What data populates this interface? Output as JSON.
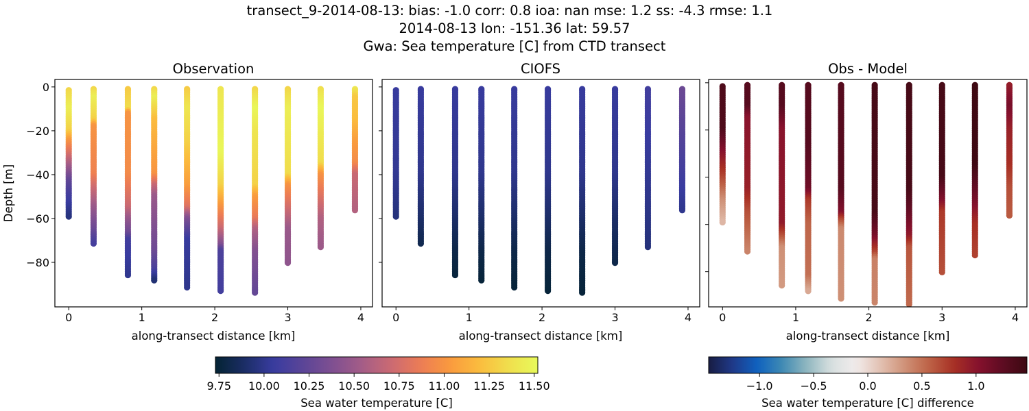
{
  "chart_data": {
    "title_lines": [
      "transect_9-2014-08-13: bias: -1.0  corr: 0.8  ioa: nan  mse: 1.2  ss: -4.3  rmse: 1.1",
      "2014-08-13 lon: -151.36 lat: 59.57",
      "Gwa: Sea temperature [C] from CTD transect"
    ],
    "panels": [
      {
        "title": "Observation",
        "type": "scatter",
        "field": "obs",
        "xlabel": "along-transect distance [km]",
        "ylabel": "Depth [m]",
        "xlim": [
          -0.19,
          4.16
        ],
        "ylim": [
          -100.3,
          3.4
        ],
        "xticks": [
          0,
          1,
          2,
          3,
          4
        ],
        "yticks": [
          0,
          -20,
          -40,
          -60,
          -80
        ],
        "show_ytick_labels": true,
        "colormap": "thermal",
        "clim": [
          9.73,
          11.52
        ]
      },
      {
        "title": "CIOFS",
        "type": "scatter",
        "field": "model",
        "xlabel": "along-transect distance [km]",
        "ylabel": "",
        "xlim": [
          -0.19,
          4.16
        ],
        "ylim": [
          -100.3,
          3.4
        ],
        "xticks": [
          0,
          1,
          2,
          3,
          4
        ],
        "yticks": [
          0,
          -20,
          -40,
          -60,
          -80
        ],
        "show_ytick_labels": false,
        "colormap": "thermal",
        "clim": [
          9.73,
          11.52
        ]
      },
      {
        "title": "Obs - Model",
        "type": "scatter",
        "field": "diff",
        "xlabel": "along-transect distance [km]",
        "ylabel": "",
        "xlim": [
          -0.19,
          4.16
        ],
        "ylim": [
          -94.9,
          1.4
        ],
        "xticks": [
          0,
          1,
          2,
          3,
          4
        ],
        "yticks": [
          0,
          -20,
          -40,
          -60,
          -80
        ],
        "show_ytick_labels": false,
        "colormap": "balance",
        "clim": [
          -1.47,
          1.47
        ]
      }
    ],
    "casts": [
      {
        "x": 0.0,
        "top": -1.5,
        "bottom": -59.5,
        "obs": [
          [
            0,
            11.3
          ],
          [
            10,
            11.45
          ],
          [
            20,
            11.3
          ],
          [
            25,
            11.0
          ],
          [
            30,
            10.8
          ],
          [
            37,
            10.5
          ],
          [
            43,
            10.25
          ],
          [
            50,
            10.1
          ],
          [
            60,
            9.95
          ]
        ],
        "model": [
          [
            0,
            10.05
          ],
          [
            40,
            10.02
          ],
          [
            60,
            9.95
          ]
        ],
        "diff": [
          [
            0,
            1.35
          ],
          [
            20,
            1.35
          ],
          [
            30,
            1.0
          ],
          [
            40,
            0.7
          ],
          [
            50,
            0.35
          ],
          [
            60,
            0.15
          ]
        ]
      },
      {
        "x": 0.34,
        "top": -1.0,
        "bottom": -71.5,
        "obs": [
          [
            0,
            11.3
          ],
          [
            5,
            11.45
          ],
          [
            15,
            11.3
          ],
          [
            18,
            11.0
          ],
          [
            40,
            10.9
          ],
          [
            45,
            10.75
          ],
          [
            55,
            10.5
          ],
          [
            65,
            10.3
          ],
          [
            72,
            10.1
          ]
        ],
        "model": [
          [
            0,
            10.05
          ],
          [
            40,
            10.0
          ],
          [
            60,
            9.9
          ],
          [
            72,
            9.82
          ]
        ],
        "diff": [
          [
            0,
            1.3
          ],
          [
            10,
            1.3
          ],
          [
            15,
            1.0
          ],
          [
            45,
            0.9
          ],
          [
            55,
            0.65
          ],
          [
            72,
            0.4
          ]
        ]
      },
      {
        "x": 0.81,
        "top": -1.0,
        "bottom": -86.5,
        "obs": [
          [
            0,
            11.25
          ],
          [
            10,
            11.35
          ],
          [
            12,
            11.0
          ],
          [
            40,
            10.95
          ],
          [
            55,
            10.7
          ],
          [
            60,
            10.5
          ],
          [
            67,
            10.3
          ],
          [
            70,
            10.1
          ],
          [
            87,
            10.0
          ]
        ],
        "model": [
          [
            0,
            10.05
          ],
          [
            40,
            10.0
          ],
          [
            60,
            9.9
          ],
          [
            75,
            9.8
          ],
          [
            87,
            9.76
          ]
        ],
        "diff": [
          [
            0,
            1.3
          ],
          [
            10,
            1.3
          ],
          [
            20,
            1.0
          ],
          [
            60,
            0.95
          ],
          [
            65,
            0.65
          ],
          [
            70,
            0.35
          ],
          [
            87,
            0.3
          ]
        ]
      },
      {
        "x": 1.17,
        "top": -1.0,
        "bottom": -88.5,
        "obs": [
          [
            0,
            11.3
          ],
          [
            5,
            11.45
          ],
          [
            15,
            11.2
          ],
          [
            40,
            11.0
          ],
          [
            45,
            10.7
          ],
          [
            50,
            10.5
          ],
          [
            75,
            10.3
          ],
          [
            83,
            10.15
          ],
          [
            89,
            9.9
          ]
        ],
        "model": [
          [
            0,
            10.05
          ],
          [
            40,
            10.0
          ],
          [
            60,
            9.9
          ],
          [
            75,
            9.8
          ],
          [
            89,
            9.75
          ]
        ],
        "diff": [
          [
            0,
            1.3
          ],
          [
            25,
            1.3
          ],
          [
            45,
            1.15
          ],
          [
            50,
            0.75
          ],
          [
            60,
            0.55
          ],
          [
            82,
            0.5
          ],
          [
            89,
            0.2
          ]
        ]
      },
      {
        "x": 1.62,
        "top": -1.0,
        "bottom": -91.5,
        "obs": [
          [
            0,
            11.25
          ],
          [
            10,
            11.4
          ],
          [
            25,
            11.3
          ],
          [
            45,
            11.05
          ],
          [
            55,
            10.8
          ],
          [
            60,
            10.4
          ],
          [
            70,
            10.05
          ],
          [
            92,
            10.0
          ]
        ],
        "model": [
          [
            0,
            10.05
          ],
          [
            40,
            10.0
          ],
          [
            60,
            9.9
          ],
          [
            75,
            9.8
          ],
          [
            92,
            9.75
          ]
        ],
        "diff": [
          [
            0,
            1.3
          ],
          [
            45,
            1.3
          ],
          [
            55,
            1.05
          ],
          [
            58,
            0.7
          ],
          [
            62,
            0.38
          ],
          [
            92,
            0.35
          ]
        ]
      },
      {
        "x": 2.08,
        "top": -1.0,
        "bottom": -93.5,
        "obs": [
          [
            0,
            11.4
          ],
          [
            30,
            11.5
          ],
          [
            45,
            11.3
          ],
          [
            55,
            11.0
          ],
          [
            65,
            10.7
          ],
          [
            72,
            10.4
          ],
          [
            75,
            10.15
          ],
          [
            94,
            10.1
          ]
        ],
        "model": [
          [
            0,
            10.05
          ],
          [
            40,
            10.0
          ],
          [
            60,
            9.9
          ],
          [
            75,
            9.8
          ],
          [
            94,
            9.75
          ]
        ],
        "diff": [
          [
            0,
            1.4
          ],
          [
            55,
            1.4
          ],
          [
            65,
            1.1
          ],
          [
            72,
            0.7
          ],
          [
            75,
            0.42
          ],
          [
            95,
            0.4
          ]
        ]
      },
      {
        "x": 2.55,
        "top": -1.0,
        "bottom": -94.5,
        "obs": [
          [
            0,
            11.3
          ],
          [
            10,
            11.5
          ],
          [
            20,
            11.4
          ],
          [
            45,
            11.3
          ],
          [
            50,
            11.05
          ],
          [
            60,
            10.85
          ],
          [
            65,
            10.6
          ],
          [
            75,
            10.4
          ],
          [
            95,
            10.25
          ]
        ],
        "model": [
          [
            0,
            10.05
          ],
          [
            40,
            10.0
          ],
          [
            60,
            9.9
          ],
          [
            75,
            9.8
          ],
          [
            95,
            9.75
          ]
        ],
        "diff": [
          [
            0,
            1.4
          ],
          [
            45,
            1.4
          ],
          [
            55,
            1.2
          ],
          [
            65,
            0.95
          ],
          [
            70,
            0.62
          ],
          [
            97,
            0.52
          ]
        ]
      },
      {
        "x": 3.0,
        "top": -1.0,
        "bottom": -80.5,
        "obs": [
          [
            0,
            11.3
          ],
          [
            10,
            11.45
          ],
          [
            40,
            11.35
          ],
          [
            45,
            11.0
          ],
          [
            55,
            10.75
          ],
          [
            65,
            10.5
          ],
          [
            81,
            10.45
          ]
        ],
        "model": [
          [
            0,
            10.05
          ],
          [
            40,
            10.0
          ],
          [
            60,
            9.9
          ],
          [
            81,
            9.8
          ]
        ],
        "diff": [
          [
            0,
            1.4
          ],
          [
            40,
            1.4
          ],
          [
            50,
            1.05
          ],
          [
            55,
            0.75
          ],
          [
            81,
            0.65
          ]
        ]
      },
      {
        "x": 3.45,
        "top": -1.0,
        "bottom": -73.5,
        "obs": [
          [
            0,
            11.35
          ],
          [
            10,
            11.5
          ],
          [
            35,
            11.35
          ],
          [
            40,
            11.0
          ],
          [
            50,
            10.8
          ],
          [
            60,
            10.6
          ],
          [
            74,
            10.5
          ]
        ],
        "model": [
          [
            0,
            10.1
          ],
          [
            40,
            10.02
          ],
          [
            74,
            9.95
          ]
        ],
        "diff": [
          [
            0,
            1.45
          ],
          [
            35,
            1.45
          ],
          [
            50,
            1.1
          ],
          [
            60,
            0.8
          ],
          [
            75,
            0.7
          ]
        ]
      },
      {
        "x": 3.92,
        "top": -1.0,
        "bottom": -56.5,
        "obs": [
          [
            0,
            11.45
          ],
          [
            5,
            11.25
          ],
          [
            15,
            11.2
          ],
          [
            25,
            11.05
          ],
          [
            35,
            10.95
          ],
          [
            40,
            10.7
          ],
          [
            57,
            10.6
          ]
        ],
        "model": [
          [
            0,
            10.3
          ],
          [
            30,
            10.15
          ],
          [
            57,
            10.0
          ]
        ],
        "diff": [
          [
            0,
            0.9
          ],
          [
            10,
            1.1
          ],
          [
            20,
            0.9
          ],
          [
            35,
            0.8
          ],
          [
            45,
            0.65
          ],
          [
            57,
            0.6
          ]
        ]
      }
    ],
    "colorbars": [
      {
        "label": "Sea water temperature [C]",
        "colormap": "thermal",
        "range": [
          9.73,
          11.52
        ],
        "ticks": [
          "9.75",
          "10.00",
          "10.25",
          "10.50",
          "10.75",
          "11.00",
          "11.25",
          "11.50"
        ]
      },
      {
        "label": "Sea water temperature [C] difference",
        "colormap": "balance",
        "range": [
          -1.47,
          1.47
        ],
        "ticks": [
          "−1.0",
          "−0.5",
          "0.0",
          "0.5",
          "1.0"
        ]
      }
    ],
    "colormaps": {
      "thermal": [
        "#042333",
        "#1b2d66",
        "#393ca0",
        "#5b4597",
        "#7f4f91",
        "#a45d87",
        "#cb6a72",
        "#ec7c55",
        "#f99a3e",
        "#fbbc3e",
        "#f0de4d",
        "#e8fa5b"
      ],
      "balance": [
        "#181c43",
        "#1f3a8a",
        "#0f62c0",
        "#3f8ab3",
        "#8fb6bf",
        "#d7dfdf",
        "#f1ecec",
        "#e3c2b3",
        "#cf9278",
        "#bd6246",
        "#a83024",
        "#86112d",
        "#5e0c22",
        "#3c0912"
      ]
    }
  }
}
